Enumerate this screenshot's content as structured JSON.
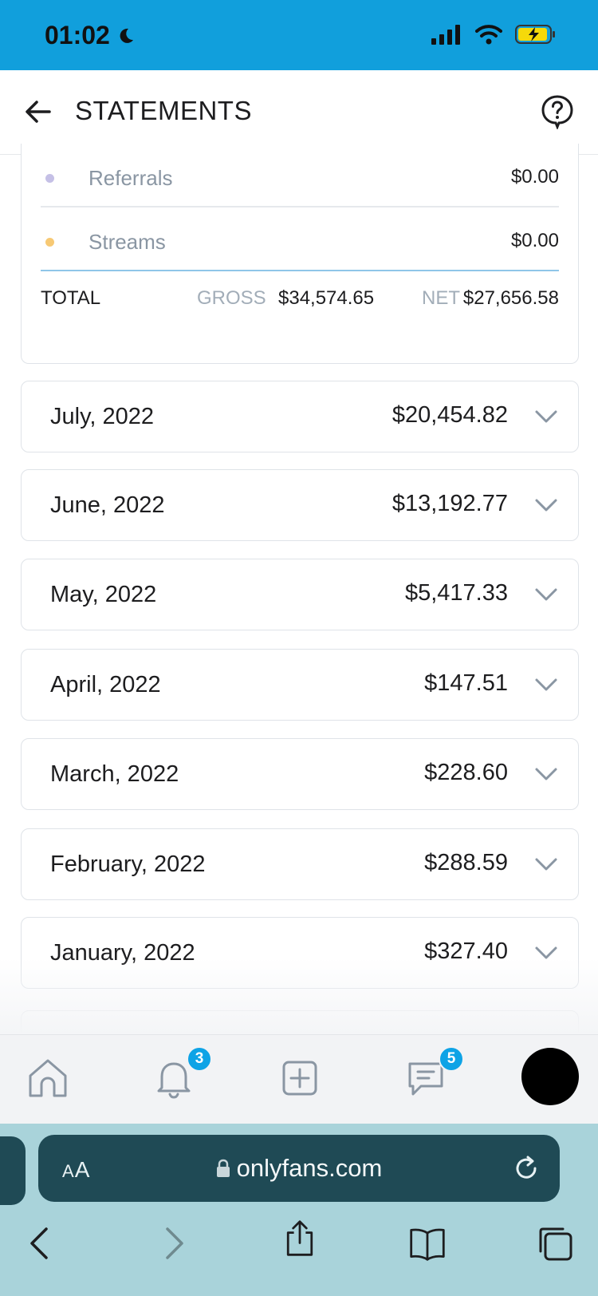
{
  "status_bar": {
    "time": "01:02",
    "bg": "#119fdc"
  },
  "header": {
    "title": "STATEMENTS"
  },
  "summary": {
    "rows": [
      {
        "label": "Referrals",
        "amount": "$0.00",
        "dot_color": "#c5c0e6"
      },
      {
        "label": "Streams",
        "amount": "$0.00",
        "dot_color": "#f7c974"
      }
    ],
    "total_label": "TOTAL",
    "gross_label": "GROSS",
    "gross_value": "$34,574.65",
    "net_label": "NET",
    "net_value": "$27,656.58"
  },
  "months": [
    {
      "label": "July, 2022",
      "amount": "$20,454.82"
    },
    {
      "label": "June, 2022",
      "amount": "$13,192.77"
    },
    {
      "label": "May, 2022",
      "amount": "$5,417.33"
    },
    {
      "label": "April, 2022",
      "amount": "$147.51"
    },
    {
      "label": "March, 2022",
      "amount": "$228.60"
    },
    {
      "label": "February, 2022",
      "amount": "$288.59"
    },
    {
      "label": "January, 2022",
      "amount": "$327.40"
    }
  ],
  "bottom_nav": {
    "notifications_badge": "3",
    "messages_badge": "5",
    "icons": [
      "home-icon",
      "bell-icon",
      "add-post-icon",
      "messages-icon",
      "avatar"
    ]
  },
  "browser": {
    "aa_label_big": "A",
    "aa_label_small": "A",
    "url": "onlyfans.com"
  },
  "colors": {
    "accent": "#0ea3e6",
    "browser_bar": "#1f4a55",
    "browser_bg": "#a9d3da"
  }
}
